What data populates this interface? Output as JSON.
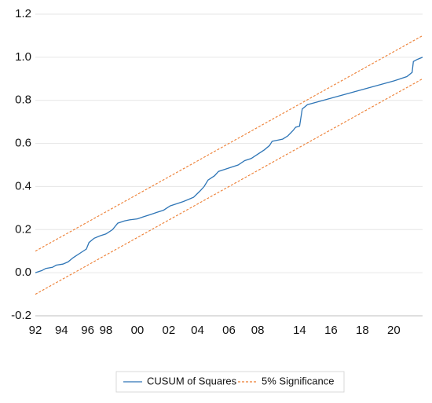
{
  "chart_data": {
    "type": "line",
    "xlim": [
      1992.0,
      2021.6
    ],
    "ylim": [
      -0.2,
      1.2
    ],
    "y_ticks": [
      "-0.2",
      "0.0",
      "0.2",
      "0.4",
      "0.6",
      "0.8",
      "1.0",
      "1.2"
    ],
    "y_tick_values": [
      -0.2,
      0.0,
      0.2,
      0.4,
      0.6,
      0.8,
      1.0,
      1.2
    ],
    "x_ticks": [
      "92",
      "94",
      "96",
      "98",
      "00",
      "02",
      "04",
      "06",
      "08",
      "14",
      "16",
      "18",
      "20"
    ],
    "x_tick_values": [
      1992.0,
      1994.0,
      1996.0,
      1997.4,
      1999.8,
      2002.2,
      2004.4,
      2006.8,
      2009.0,
      2012.2,
      2014.6,
      2017.0,
      2019.4
    ],
    "grid": "horizontal",
    "legend_position": "bottom",
    "series": [
      {
        "name": "CUSUM of Squares",
        "color": "#2E75B6",
        "style": "solid",
        "points": [
          [
            1992.0,
            0.0
          ],
          [
            1992.5,
            0.01
          ],
          [
            1992.8,
            0.02
          ],
          [
            1993.3,
            0.025
          ],
          [
            1993.6,
            0.035
          ],
          [
            1994.1,
            0.04
          ],
          [
            1994.5,
            0.05
          ],
          [
            1994.9,
            0.07
          ],
          [
            1995.4,
            0.09
          ],
          [
            1995.9,
            0.11
          ],
          [
            1996.1,
            0.14
          ],
          [
            1996.5,
            0.16
          ],
          [
            1996.9,
            0.17
          ],
          [
            1997.4,
            0.18
          ],
          [
            1997.9,
            0.2
          ],
          [
            1998.3,
            0.23
          ],
          [
            1998.8,
            0.24
          ],
          [
            1999.2,
            0.245
          ],
          [
            1999.8,
            0.25
          ],
          [
            2000.3,
            0.26
          ],
          [
            2000.8,
            0.27
          ],
          [
            2001.3,
            0.28
          ],
          [
            2001.8,
            0.29
          ],
          [
            2002.3,
            0.31
          ],
          [
            2002.8,
            0.32
          ],
          [
            2003.3,
            0.33
          ],
          [
            2003.7,
            0.34
          ],
          [
            2004.1,
            0.35
          ],
          [
            2004.6,
            0.38
          ],
          [
            2004.9,
            0.4
          ],
          [
            2005.2,
            0.43
          ],
          [
            2005.7,
            0.45
          ],
          [
            2006.0,
            0.47
          ],
          [
            2006.5,
            0.48
          ],
          [
            2007.0,
            0.49
          ],
          [
            2007.5,
            0.5
          ],
          [
            2008.0,
            0.52
          ],
          [
            2008.5,
            0.53
          ],
          [
            2009.0,
            0.55
          ],
          [
            2009.5,
            0.57
          ],
          [
            2009.9,
            0.59
          ],
          [
            2010.1,
            0.61
          ],
          [
            2010.5,
            0.615
          ],
          [
            2010.9,
            0.62
          ],
          [
            2011.3,
            0.635
          ],
          [
            2011.7,
            0.66
          ],
          [
            2011.9,
            0.675
          ],
          [
            2012.2,
            0.68
          ],
          [
            2012.4,
            0.76
          ],
          [
            2012.8,
            0.78
          ],
          [
            2013.4,
            0.79
          ],
          [
            2014.0,
            0.8
          ],
          [
            2014.6,
            0.81
          ],
          [
            2015.2,
            0.82
          ],
          [
            2015.8,
            0.83
          ],
          [
            2016.4,
            0.84
          ],
          [
            2017.0,
            0.85
          ],
          [
            2017.6,
            0.86
          ],
          [
            2018.2,
            0.87
          ],
          [
            2018.8,
            0.88
          ],
          [
            2019.4,
            0.89
          ],
          [
            2019.9,
            0.9
          ],
          [
            2020.4,
            0.91
          ],
          [
            2020.8,
            0.93
          ],
          [
            2020.9,
            0.98
          ],
          [
            2021.2,
            0.99
          ],
          [
            2021.6,
            1.0
          ]
        ]
      },
      {
        "name": "5% Significance",
        "color": "#ED7D31",
        "style": "dashed",
        "points": [
          [
            1992.0,
            0.1
          ],
          [
            2021.6,
            1.1
          ]
        ]
      },
      {
        "name": "5% Significance",
        "color": "#ED7D31",
        "style": "dashed",
        "show_in_legend": false,
        "points": [
          [
            1992.0,
            -0.1
          ],
          [
            2021.6,
            0.9
          ]
        ]
      }
    ]
  }
}
